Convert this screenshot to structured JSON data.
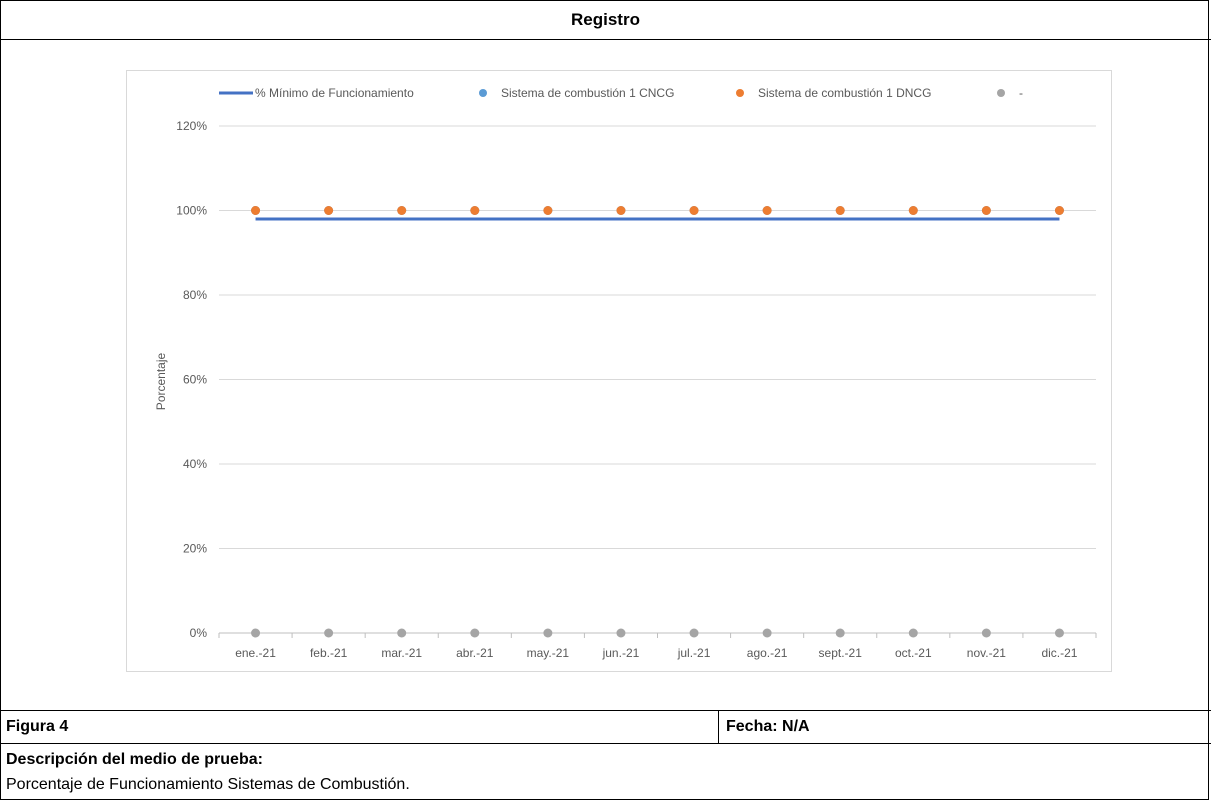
{
  "header": {
    "title": "Registro"
  },
  "footer": {
    "figure_label": "Figura 4",
    "date_label": "Fecha: N/A",
    "description_title": "Descripción del medio de prueba:",
    "description_text": "Porcentaje de Funcionamiento Sistemas de Combustión."
  },
  "chart_data": {
    "type": "line",
    "title": "",
    "xlabel": "",
    "ylabel": "Porcentaje",
    "ylim": [
      0,
      1.2
    ],
    "yticks": [
      0,
      0.2,
      0.4,
      0.6,
      0.8,
      1.0,
      1.2
    ],
    "ytick_labels": [
      "0%",
      "20%",
      "40%",
      "60%",
      "80%",
      "100%",
      "120%"
    ],
    "grid": true,
    "legend_position": "top",
    "categories": [
      "ene.-21",
      "feb.-21",
      "mar.-21",
      "abr.-21",
      "may.-21",
      "jun.-21",
      "jul.-21",
      "ago.-21",
      "sept.-21",
      "oct.-21",
      "nov.-21",
      "dic.-21"
    ],
    "series": [
      {
        "name": "% Mínimo de Funcionamiento",
        "kind": "line",
        "color": "#4472c4",
        "values": [
          0.98,
          0.98,
          0.98,
          0.98,
          0.98,
          0.98,
          0.98,
          0.98,
          0.98,
          0.98,
          0.98,
          0.98
        ]
      },
      {
        "name": "Sistema de combustión 1 CNCG",
        "kind": "scatter",
        "color": "#5b9bd5",
        "values": [
          1.0,
          1.0,
          1.0,
          1.0,
          1.0,
          1.0,
          1.0,
          1.0,
          1.0,
          1.0,
          1.0,
          1.0
        ]
      },
      {
        "name": "Sistema de combustión 1 DNCG",
        "kind": "scatter",
        "color": "#ed7d31",
        "values": [
          1.0,
          1.0,
          1.0,
          1.0,
          1.0,
          1.0,
          1.0,
          1.0,
          1.0,
          1.0,
          1.0,
          1.0
        ]
      },
      {
        "name": "-",
        "kind": "scatter",
        "color": "#a5a5a5",
        "values": [
          0,
          0,
          0,
          0,
          0,
          0,
          0,
          0,
          0,
          0,
          0,
          0
        ]
      }
    ]
  }
}
